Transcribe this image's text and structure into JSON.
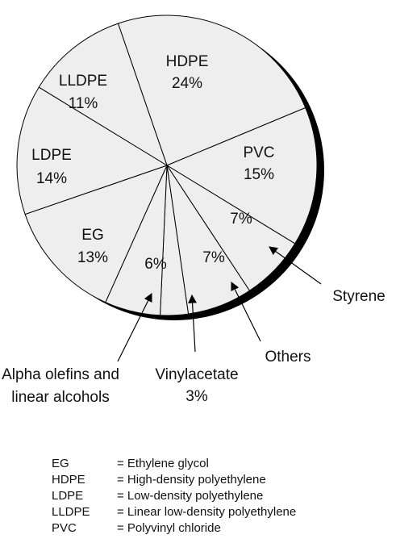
{
  "chart_data": {
    "type": "pie",
    "categories": [
      "HDPE",
      "PVC",
      "Styrene",
      "Others",
      "Vinylacetate",
      "Alpha olefins and linear alcohols",
      "EG",
      "LDPE",
      "LLDPE"
    ],
    "values": [
      24,
      15,
      7,
      7,
      3,
      6,
      13,
      14,
      11
    ],
    "value_labels": [
      "24%",
      "15%",
      "7%",
      "7%",
      "3%",
      "6%",
      "13%",
      "14%",
      "11%"
    ],
    "color": "#eeeeee",
    "legend_notes": [
      {
        "abbr": "EG",
        "meaning": "= Ethylene glycol"
      },
      {
        "abbr": "HDPE",
        "meaning": "= High-density polyethylene"
      },
      {
        "abbr": "LDPE",
        "meaning": "= Low-density polyethylene"
      },
      {
        "abbr": "LLDPE",
        "meaning": "= Linear low-density polyethylene"
      },
      {
        "abbr": "PVC",
        "meaning": "= Polyvinyl chloride"
      }
    ]
  }
}
